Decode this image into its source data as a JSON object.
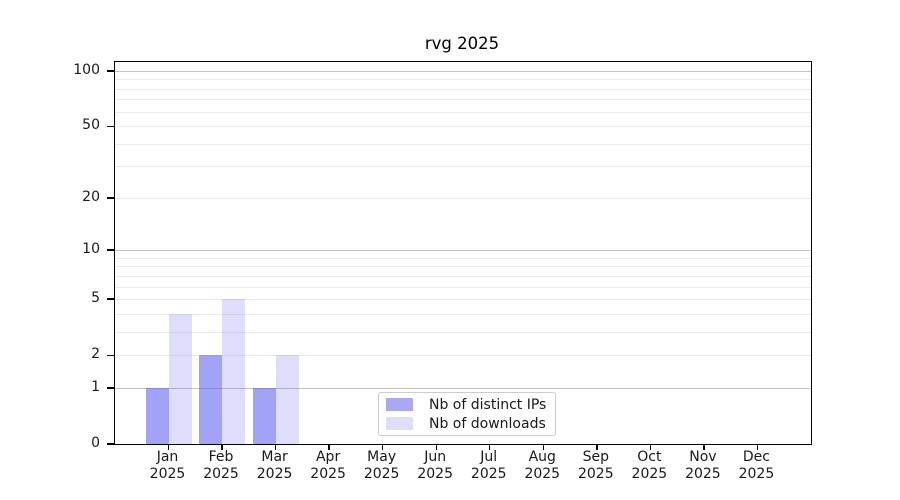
{
  "chart_data": {
    "type": "bar",
    "title": "rvg 2025",
    "categories": [
      "Jan 2025",
      "Feb 2025",
      "Mar 2025",
      "Apr 2025",
      "May 2025",
      "Jun 2025",
      "Jul 2025",
      "Aug 2025",
      "Sep 2025",
      "Oct 2025",
      "Nov 2025",
      "Dec 2025"
    ],
    "months": [
      "Jan",
      "Feb",
      "Mar",
      "Apr",
      "May",
      "Jun",
      "Jul",
      "Aug",
      "Sep",
      "Oct",
      "Nov",
      "Dec"
    ],
    "year_label": "2025",
    "series": [
      {
        "name": "Nb of distinct IPs",
        "values": [
          1,
          2,
          1,
          0,
          0,
          0,
          0,
          0,
          0,
          0,
          0,
          0
        ],
        "color": "rgba(90,90,240,0.56)",
        "solid_color": "#a8a8f4"
      },
      {
        "name": "Nb of downloads",
        "values": [
          4,
          5,
          2,
          0,
          0,
          0,
          0,
          0,
          0,
          0,
          0,
          0
        ],
        "color": "rgba(90,90,240,0.20)",
        "solid_color": "#dedefa"
      }
    ],
    "xlabel": "",
    "ylabel": "",
    "yscale": "log(1+v)",
    "ylim": [
      0,
      100
    ],
    "y_tick_values": [
      0,
      1,
      2,
      5,
      10,
      20,
      50,
      100
    ],
    "y_decade_gridlines": [
      1,
      10,
      100
    ],
    "y_minor_gridlines": [
      2,
      3,
      4,
      5,
      6,
      7,
      8,
      9,
      20,
      30,
      40,
      50,
      60,
      70,
      80,
      90
    ],
    "grid": "horizontal only",
    "legend_position": "lower center"
  },
  "colors": {
    "decade_gridline": "#c3c3c3",
    "minor_gridline": "#ebebeb",
    "axis_line": "#000000",
    "legend_border": "#cccccc",
    "text": "#1a1a1a"
  }
}
